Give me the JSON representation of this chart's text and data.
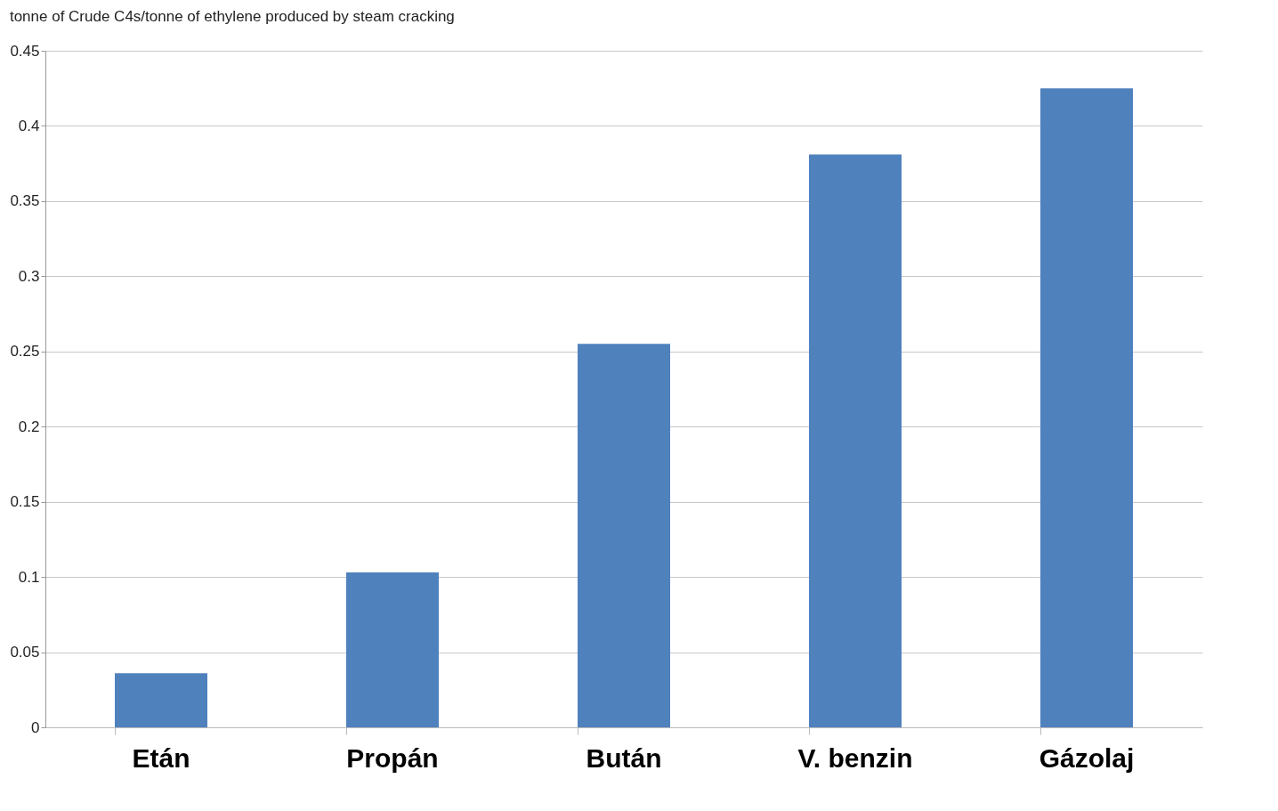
{
  "chart_data": {
    "type": "bar",
    "title": "tonne of Crude C4s/tonne of ethylene produced by steam cracking",
    "categories": [
      "Etán",
      "Propán",
      "Bután",
      "V. benzin",
      "Gázolaj"
    ],
    "values": [
      0.036,
      0.103,
      0.255,
      0.381,
      0.425
    ],
    "color": "#4f81bd",
    "ylim": [
      0,
      0.45
    ],
    "yticks": [
      0,
      0.05,
      0.1,
      0.15,
      0.2,
      0.25,
      0.3,
      0.35,
      0.4,
      0.45
    ],
    "grid": "y"
  }
}
